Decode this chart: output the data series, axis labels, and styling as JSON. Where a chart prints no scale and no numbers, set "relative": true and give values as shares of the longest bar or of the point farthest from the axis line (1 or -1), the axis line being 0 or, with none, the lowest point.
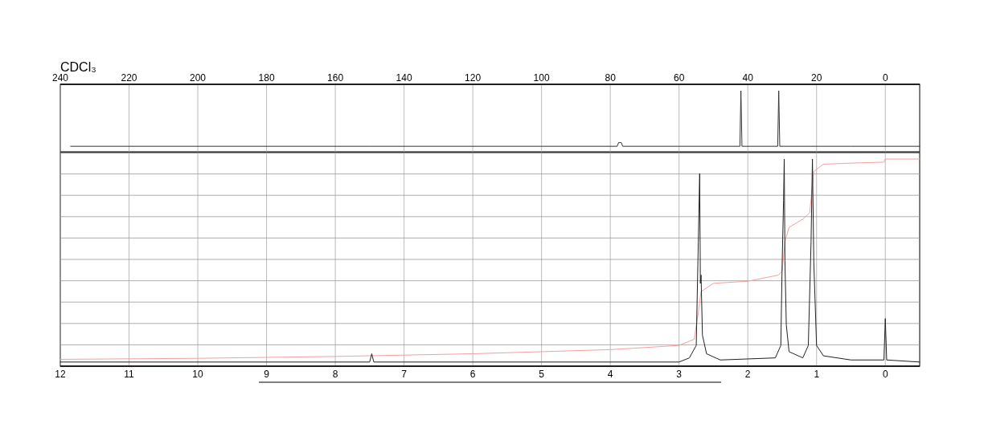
{
  "chart_data": [
    {
      "type": "line",
      "title": "CDCl₃",
      "relative": true,
      "xlim": [
        240,
        -10
      ],
      "xticks": [
        240,
        220,
        200,
        180,
        160,
        140,
        120,
        100,
        80,
        60,
        40,
        20,
        0
      ],
      "grid": "x",
      "tick_labels": "x",
      "series": [
        {
          "color": "#333333",
          "x": [
            237,
            200,
            150,
            100,
            78,
            77.6,
            77.2,
            76.8,
            76.4,
            60,
            42.3,
            42,
            41.7,
            31.3,
            31.0,
            30.7,
            10,
            -10
          ],
          "values": [
            0.09,
            0.09,
            0.09,
            0.09,
            0.09,
            0.15,
            0.15,
            0.15,
            0.09,
            0.09,
            0.09,
            1,
            0.09,
            0.09,
            1,
            0.09,
            0.09,
            0.09
          ]
        }
      ]
    },
    {
      "type": "line",
      "relative": true,
      "xlim": [
        12,
        -0.5
      ],
      "xticks": [
        12,
        11,
        10,
        9,
        8,
        7,
        6,
        5,
        4,
        3,
        2,
        1,
        0
      ],
      "grid": true,
      "series": [
        {
          "color": "#f4a0a0",
          "x": [
            12,
            10,
            8,
            6,
            4,
            3,
            2.78,
            2.72,
            2.68,
            2.5,
            2.0,
            1.55,
            1.5,
            1.46,
            1.4,
            1.2,
            1.1,
            1.04,
            0.9,
            0.5,
            0.02,
            0.0,
            -0.5
          ],
          "values": [
            0.033,
            0.038,
            0.047,
            0.06,
            0.08,
            0.1,
            0.13,
            0.26,
            0.36,
            0.4,
            0.41,
            0.44,
            0.46,
            0.6,
            0.67,
            0.71,
            0.74,
            0.94,
            0.975,
            0.98,
            0.985,
            1.0,
            1.0
          ]
        },
        {
          "color": "#222222",
          "x": [
            12,
            10,
            8,
            7.5,
            7.47,
            7.44,
            5,
            3,
            2.85,
            2.75,
            2.72,
            2.7,
            2.69,
            2.68,
            2.66,
            2.6,
            2.4,
            1.6,
            1.52,
            1.5,
            1.48,
            1.47,
            1.46,
            1.44,
            1.4,
            1.2,
            1.12,
            1.08,
            1.06,
            1.04,
            1.0,
            0.9,
            0.5,
            0.02,
            0.0,
            -0.02,
            -0.5
          ],
          "values": [
            0.02,
            0.02,
            0.02,
            0.02,
            0.06,
            0.02,
            0.02,
            0.02,
            0.04,
            0.1,
            0.6,
            0.93,
            0.4,
            0.44,
            0.15,
            0.06,
            0.03,
            0.04,
            0.1,
            0.5,
            0.8,
            1.0,
            0.51,
            0.2,
            0.07,
            0.04,
            0.1,
            0.6,
            1.0,
            0.5,
            0.1,
            0.05,
            0.03,
            0.03,
            0.23,
            0.03,
            0.02
          ]
        }
      ]
    }
  ]
}
